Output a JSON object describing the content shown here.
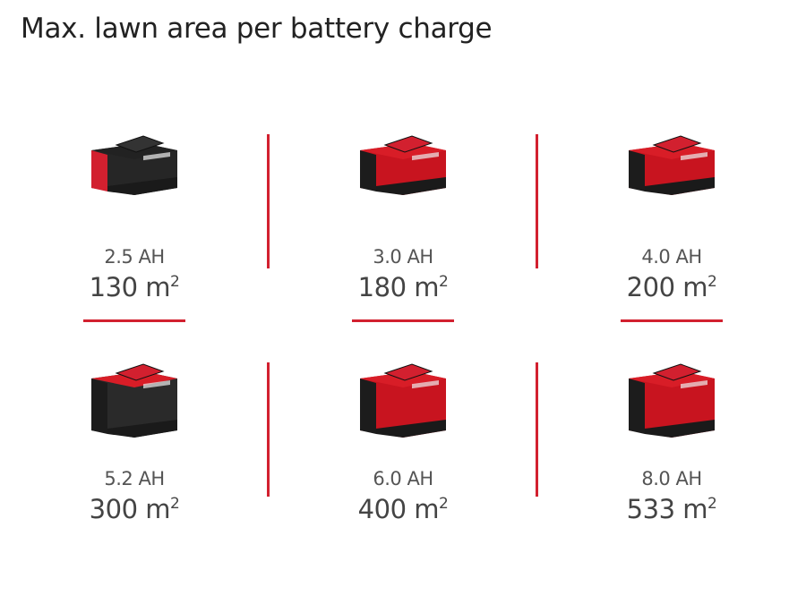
{
  "title": "Max. lawn area per battery charge",
  "accent_color": "#d2202f",
  "batteries": [
    {
      "capacity": "2.5 AH",
      "area": "130 m",
      "unit_sup": "2",
      "style": "black-top",
      "size": "small"
    },
    {
      "capacity": "3.0 AH",
      "area": "180 m",
      "unit_sup": "2",
      "style": "red",
      "size": "small"
    },
    {
      "capacity": "4.0 AH",
      "area": "200 m",
      "unit_sup": "2",
      "style": "red",
      "size": "small"
    },
    {
      "capacity": "5.2 AH",
      "area": "300 m",
      "unit_sup": "2",
      "style": "black-body",
      "size": "large"
    },
    {
      "capacity": "6.0 AH",
      "area": "400 m",
      "unit_sup": "2",
      "style": "red",
      "size": "large"
    },
    {
      "capacity": "8.0 AH",
      "area": "533 m",
      "unit_sup": "2",
      "style": "red",
      "size": "large"
    }
  ]
}
